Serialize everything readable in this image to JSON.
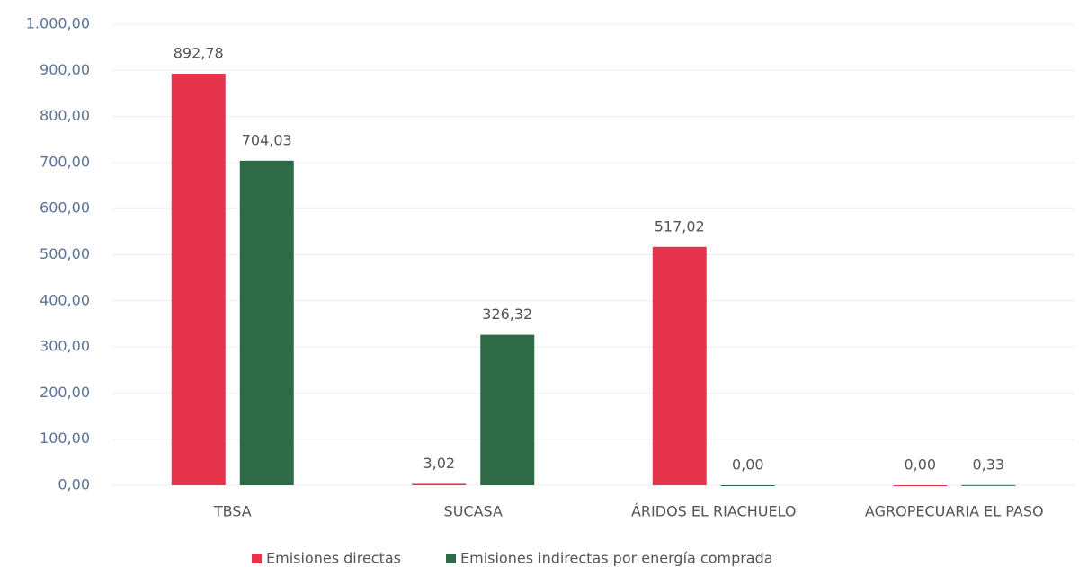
{
  "chart_data": {
    "type": "bar",
    "categories": [
      "TBSA",
      "SUCASA",
      "ÁRIDOS EL RIACHUELO",
      "AGROPECUARIA EL PASO"
    ],
    "series": [
      {
        "name": "Emisiones directas",
        "color": "#e5344b",
        "values": [
          892.78,
          3.02,
          517.02,
          0
        ],
        "value_labels": [
          "892,78",
          "3,02",
          "517,02",
          "0,00"
        ]
      },
      {
        "name": "Emisiones indirectas por energía comprada",
        "color": "#2f6a47",
        "values": [
          704.03,
          326.32,
          0,
          0.33
        ],
        "value_labels": [
          "704,03",
          "326,32",
          "0,00",
          "0,33"
        ]
      }
    ],
    "ylim": [
      0,
      1000
    ],
    "yticks": [
      {
        "value": 0,
        "label": "0,00"
      },
      {
        "value": 100,
        "label": "100,00"
      },
      {
        "value": 200,
        "label": "200,00"
      },
      {
        "value": 300,
        "label": "300,00"
      },
      {
        "value": 400,
        "label": "400,00"
      },
      {
        "value": 500,
        "label": "500,00"
      },
      {
        "value": 600,
        "label": "600,00"
      },
      {
        "value": 700,
        "label": "700,00"
      },
      {
        "value": 800,
        "label": "800,00"
      },
      {
        "value": 900,
        "label": "900,00"
      },
      {
        "value": 1000,
        "label": "1.000,00"
      }
    ],
    "grid": true,
    "legend": "bottom"
  }
}
